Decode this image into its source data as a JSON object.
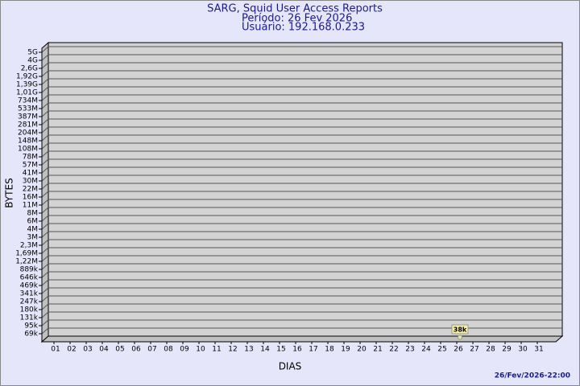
{
  "chart_data": {
    "type": "line",
    "title": "SARG, Squid User Access Reports",
    "subtitle": [
      "Período: 26 Fev 2026",
      "Usuário: 192.168.0.233"
    ],
    "y_label": "BYTES",
    "x_label": "DIAS",
    "footer": "26/Fev/2026-22:00",
    "y_levels": [
      "5G",
      "4G",
      "2,6G",
      "1,92G",
      "1,39G",
      "1,01G",
      "734M",
      "533M",
      "387M",
      "281M",
      "204M",
      "148M",
      "108M",
      "78M",
      "57M",
      "41M",
      "30M",
      "22M",
      "16M",
      "11M",
      "8M",
      "6M",
      "4M",
      "3M",
      "2,3M",
      "1,69M",
      "1,22M",
      "889k",
      "646k",
      "469k",
      "341k",
      "247k",
      "180k",
      "131k",
      "95k",
      "69k"
    ],
    "categories": [
      "01",
      "02",
      "03",
      "04",
      "05",
      "06",
      "07",
      "08",
      "09",
      "10",
      "11",
      "12",
      "13",
      "14",
      "15",
      "16",
      "17",
      "18",
      "19",
      "20",
      "21",
      "22",
      "23",
      "24",
      "25",
      "26",
      "27",
      "28",
      "29",
      "30",
      "31"
    ],
    "points": [
      {
        "category": "26",
        "value": 38000,
        "value_label": "38k"
      }
    ],
    "grid": true,
    "color": "#e8e8a0"
  }
}
